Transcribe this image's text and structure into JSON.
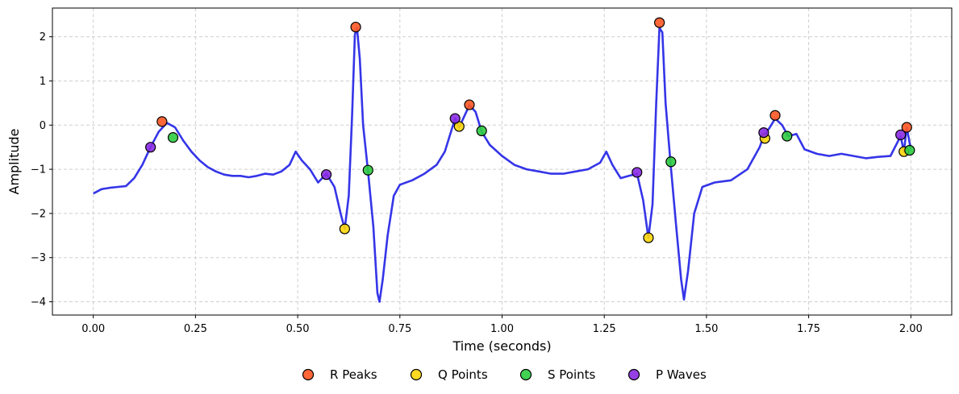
{
  "chart_data": {
    "type": "line",
    "title": "",
    "xlabel": "Time (seconds)",
    "ylabel": "Amplitude",
    "xlim": [
      -0.1,
      2.1
    ],
    "ylim": [
      -4.3,
      2.65
    ],
    "xticks": [
      0.0,
      0.25,
      0.5,
      0.75,
      1.0,
      1.25,
      1.5,
      1.75,
      2.0
    ],
    "xtick_labels": [
      "0.00",
      "0.25",
      "0.50",
      "0.75",
      "1.00",
      "1.25",
      "1.50",
      "1.75",
      "2.00"
    ],
    "yticks": [
      -4,
      -3,
      -2,
      -1,
      0,
      1,
      2
    ],
    "ytick_labels": [
      "−4",
      "−3",
      "−2",
      "−1",
      "0",
      "1",
      "2"
    ],
    "grid": true,
    "legend_position": "bottom-center",
    "signal": {
      "color": "#1f1fe6",
      "points": [
        [
          0.0,
          -1.55
        ],
        [
          0.02,
          -1.45
        ],
        [
          0.04,
          -1.42
        ],
        [
          0.06,
          -1.4
        ],
        [
          0.08,
          -1.38
        ],
        [
          0.1,
          -1.2
        ],
        [
          0.12,
          -0.9
        ],
        [
          0.14,
          -0.5
        ],
        [
          0.16,
          -0.15
        ],
        [
          0.18,
          0.05
        ],
        [
          0.2,
          -0.05
        ],
        [
          0.22,
          -0.35
        ],
        [
          0.24,
          -0.6
        ],
        [
          0.26,
          -0.8
        ],
        [
          0.28,
          -0.95
        ],
        [
          0.3,
          -1.05
        ],
        [
          0.32,
          -1.12
        ],
        [
          0.34,
          -1.15
        ],
        [
          0.36,
          -1.15
        ],
        [
          0.38,
          -1.18
        ],
        [
          0.4,
          -1.15
        ],
        [
          0.42,
          -1.1
        ],
        [
          0.44,
          -1.12
        ],
        [
          0.46,
          -1.05
        ],
        [
          0.48,
          -0.9
        ],
        [
          0.495,
          -0.6
        ],
        [
          0.51,
          -0.8
        ],
        [
          0.53,
          -1.0
        ],
        [
          0.55,
          -1.3
        ],
        [
          0.57,
          -1.1
        ],
        [
          0.59,
          -1.4
        ],
        [
          0.605,
          -2.0
        ],
        [
          0.615,
          -2.35
        ],
        [
          0.625,
          -1.6
        ],
        [
          0.633,
          0.2
        ],
        [
          0.64,
          2.05
        ],
        [
          0.645,
          2.2
        ],
        [
          0.652,
          1.5
        ],
        [
          0.66,
          0.0
        ],
        [
          0.672,
          -1.05
        ],
        [
          0.685,
          -2.3
        ],
        [
          0.695,
          -3.8
        ],
        [
          0.7,
          -4.0
        ],
        [
          0.708,
          -3.5
        ],
        [
          0.72,
          -2.5
        ],
        [
          0.735,
          -1.6
        ],
        [
          0.75,
          -1.35
        ],
        [
          0.78,
          -1.25
        ],
        [
          0.81,
          -1.1
        ],
        [
          0.84,
          -0.9
        ],
        [
          0.86,
          -0.6
        ],
        [
          0.885,
          0.15
        ],
        [
          0.895,
          -0.05
        ],
        [
          0.91,
          0.25
        ],
        [
          0.92,
          0.45
        ],
        [
          0.935,
          0.3
        ],
        [
          0.95,
          -0.15
        ],
        [
          0.97,
          -0.45
        ],
        [
          1.0,
          -0.7
        ],
        [
          1.03,
          -0.9
        ],
        [
          1.06,
          -1.0
        ],
        [
          1.09,
          -1.05
        ],
        [
          1.12,
          -1.1
        ],
        [
          1.15,
          -1.1
        ],
        [
          1.18,
          -1.05
        ],
        [
          1.21,
          -1.0
        ],
        [
          1.24,
          -0.85
        ],
        [
          1.255,
          -0.6
        ],
        [
          1.27,
          -0.9
        ],
        [
          1.29,
          -1.2
        ],
        [
          1.31,
          -1.15
        ],
        [
          1.33,
          -1.1
        ],
        [
          1.345,
          -1.7
        ],
        [
          1.358,
          -2.55
        ],
        [
          1.368,
          -1.8
        ],
        [
          1.377,
          0.5
        ],
        [
          1.385,
          2.2
        ],
        [
          1.392,
          2.1
        ],
        [
          1.4,
          0.5
        ],
        [
          1.412,
          -0.85
        ],
        [
          1.425,
          -2.2
        ],
        [
          1.438,
          -3.5
        ],
        [
          1.445,
          -3.95
        ],
        [
          1.455,
          -3.3
        ],
        [
          1.47,
          -2.0
        ],
        [
          1.49,
          -1.4
        ],
        [
          1.52,
          -1.3
        ],
        [
          1.56,
          -1.25
        ],
        [
          1.6,
          -1.0
        ],
        [
          1.63,
          -0.5
        ],
        [
          1.64,
          -0.25
        ],
        [
          1.655,
          -0.05
        ],
        [
          1.668,
          0.15
        ],
        [
          1.685,
          0.0
        ],
        [
          1.7,
          -0.25
        ],
        [
          1.72,
          -0.2
        ],
        [
          1.74,
          -0.55
        ],
        [
          1.77,
          -0.65
        ],
        [
          1.8,
          -0.7
        ],
        [
          1.83,
          -0.65
        ],
        [
          1.86,
          -0.7
        ],
        [
          1.89,
          -0.75
        ],
        [
          1.92,
          -0.72
        ],
        [
          1.95,
          -0.7
        ],
        [
          1.975,
          -0.25
        ],
        [
          1.983,
          -0.6
        ],
        [
          1.99,
          -0.05
        ],
        [
          2.0,
          -0.55
        ]
      ]
    },
    "series": [
      {
        "name": "R Peaks",
        "color": "#ff5722",
        "points": [
          [
            0.168,
            0.08
          ],
          [
            0.642,
            2.22
          ],
          [
            0.92,
            0.46
          ],
          [
            1.385,
            2.32
          ],
          [
            1.668,
            0.22
          ],
          [
            1.99,
            -0.05
          ]
        ]
      },
      {
        "name": "Q Points",
        "color": "#ffd60a",
        "points": [
          [
            0.615,
            -2.35
          ],
          [
            0.895,
            -0.03
          ],
          [
            1.358,
            -2.55
          ],
          [
            1.643,
            -0.3
          ],
          [
            1.983,
            -0.6
          ]
        ]
      },
      {
        "name": "S Points",
        "color": "#2ecc40",
        "points": [
          [
            0.195,
            -0.28
          ],
          [
            0.672,
            -1.02
          ],
          [
            0.95,
            -0.13
          ],
          [
            1.413,
            -0.83
          ],
          [
            1.697,
            -0.25
          ],
          [
            1.997,
            -0.57
          ]
        ]
      },
      {
        "name": "P Waves",
        "color": "#8a2be2",
        "points": [
          [
            0.14,
            -0.5
          ],
          [
            0.57,
            -1.12
          ],
          [
            0.885,
            0.15
          ],
          [
            1.33,
            -1.07
          ],
          [
            1.64,
            -0.17
          ],
          [
            1.975,
            -0.22
          ]
        ]
      }
    ]
  }
}
